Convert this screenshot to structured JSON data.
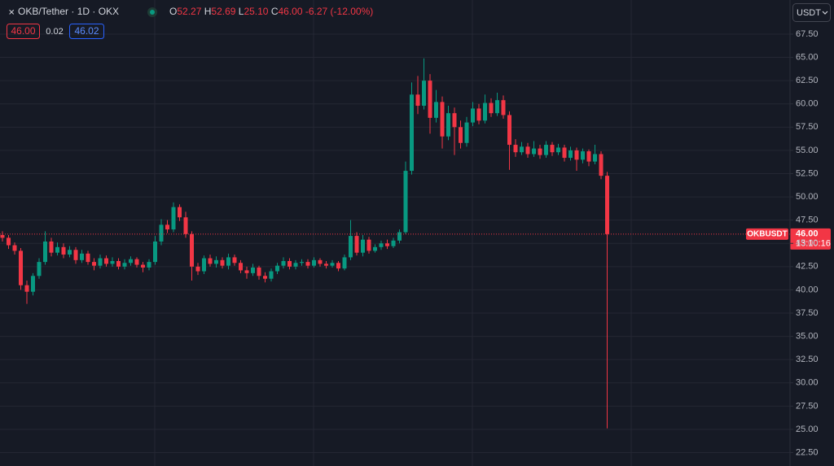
{
  "chart_data": {
    "type": "candlestick",
    "legend": {
      "symbol": "OKB/Tether · 1D · OKX",
      "o_label": "O",
      "open": "52.27",
      "h_label": "H",
      "high": "52.69",
      "l_label": "L",
      "low": "25.10",
      "c_label": "C",
      "close": "46.00",
      "change": "-6.27 (-12.00%)"
    },
    "order_boxes": {
      "sell": "46.00",
      "spread": "0.02",
      "buy": "46.02"
    },
    "currency_button": "USDT",
    "price_label": {
      "symbol": "OKBUSDT",
      "price": "46.00",
      "countdown": "13:10:16"
    },
    "up_color": "#089981",
    "down_color": "#f23645",
    "grid": true,
    "ylim": [
      21.06,
      71.17
    ],
    "yticks": [
      {
        "value": 22.5,
        "label": "22.50"
      },
      {
        "value": 25,
        "label": "25.00"
      },
      {
        "value": 27.5,
        "label": "27.50"
      },
      {
        "value": 30,
        "label": "30.00"
      },
      {
        "value": 32.5,
        "label": "32.50"
      },
      {
        "value": 35,
        "label": "35.00"
      },
      {
        "value": 37.5,
        "label": "37.50"
      },
      {
        "value": 40,
        "label": "40.00"
      },
      {
        "value": 42.5,
        "label": "42.50"
      },
      {
        "value": 45,
        "label": "45.00"
      },
      {
        "value": 47.5,
        "label": "47.50"
      },
      {
        "value": 50,
        "label": "50.00"
      },
      {
        "value": 52.5,
        "label": "52.50"
      },
      {
        "value": 55,
        "label": "55.00"
      },
      {
        "value": 57.5,
        "label": "57.50"
      },
      {
        "value": 60,
        "label": "60.00"
      },
      {
        "value": 62.5,
        "label": "62.50"
      },
      {
        "value": 65,
        "label": "65.00"
      },
      {
        "value": 67.5,
        "label": "67.50"
      }
    ],
    "open": [
      45.9,
      45.6,
      44.8,
      44.2,
      40.5,
      39.8,
      41.5,
      43.0,
      45.2,
      44.0,
      44.6,
      43.8,
      44.3,
      43.2,
      43.9,
      43.0,
      42.6,
      43.4,
      42.8,
      43.1,
      42.5,
      42.9,
      43.3,
      42.7,
      42.4,
      43.0,
      45.2,
      47.0,
      46.5,
      48.9,
      47.8,
      46.0,
      42.5,
      42.0,
      43.4,
      42.8,
      43.2,
      42.6,
      43.5,
      42.9,
      42.1,
      41.8,
      42.4,
      41.5,
      41.2,
      42.0,
      42.6,
      43.1,
      42.5,
      42.9,
      43.0,
      42.6,
      43.2,
      42.8,
      42.6,
      42.9,
      42.3,
      43.5,
      45.8,
      44.0,
      45.4,
      44.2,
      44.6,
      45.0,
      44.7,
      45.3,
      46.2,
      52.8,
      61.0,
      59.8,
      62.5,
      58.5,
      60.2,
      56.5,
      59.0,
      57.5,
      55.8,
      58.0,
      59.5,
      58.2,
      60.1,
      59.0,
      60.4,
      58.8,
      55.6,
      54.8,
      55.4,
      54.6,
      55.2,
      54.5,
      55.6,
      54.8,
      55.3,
      54.2,
      55.0,
      54.0,
      54.9,
      53.8,
      54.6,
      52.27
    ],
    "high": [
      46.3,
      45.9,
      45.1,
      44.5,
      41.0,
      41.8,
      43.4,
      46.3,
      45.6,
      45.1,
      45.0,
      44.7,
      44.6,
      44.3,
      44.2,
      43.4,
      43.8,
      43.7,
      43.5,
      43.4,
      43.3,
      43.6,
      43.5,
      43.0,
      43.3,
      45.8,
      47.6,
      47.5,
      49.4,
      49.2,
      48.4,
      46.3,
      42.9,
      43.7,
      43.8,
      43.6,
      43.5,
      43.9,
      43.8,
      43.2,
      42.5,
      42.8,
      42.6,
      41.9,
      42.3,
      42.9,
      43.5,
      43.4,
      43.2,
      43.3,
      43.3,
      43.5,
      43.4,
      43.1,
      43.2,
      43.1,
      43.8,
      47.5,
      46.2,
      45.9,
      45.7,
      44.9,
      45.3,
      45.4,
      45.6,
      46.5,
      53.8,
      62.3,
      63.0,
      64.9,
      63.2,
      61.5,
      60.8,
      59.8,
      59.6,
      58.2,
      58.6,
      60.2,
      60.0,
      61.0,
      60.6,
      61.2,
      60.9,
      59.2,
      56.2,
      55.9,
      55.8,
      56.0,
      55.6,
      56.0,
      55.9,
      55.7,
      55.6,
      55.4,
      55.3,
      55.2,
      55.1,
      55.6,
      54.9,
      52.69
    ],
    "low": [
      45.2,
      44.4,
      43.8,
      40.0,
      38.5,
      39.4,
      41.2,
      42.7,
      43.6,
      43.7,
      43.4,
      43.5,
      42.8,
      42.9,
      42.7,
      42.1,
      42.3,
      42.5,
      42.5,
      42.2,
      42.2,
      42.6,
      42.4,
      41.9,
      42.1,
      42.7,
      44.8,
      46.1,
      46.2,
      47.4,
      45.6,
      41.0,
      41.6,
      41.7,
      42.5,
      42.4,
      42.3,
      42.2,
      42.6,
      41.8,
      41.2,
      41.5,
      41.1,
      40.8,
      40.9,
      41.7,
      42.3,
      42.2,
      42.2,
      42.6,
      42.3,
      42.4,
      42.5,
      42.3,
      42.4,
      42.0,
      42.1,
      43.2,
      43.7,
      43.6,
      43.9,
      44.0,
      44.3,
      44.4,
      44.5,
      45.0,
      46.0,
      52.4,
      58.9,
      59.4,
      56.8,
      58.0,
      55.2,
      56.1,
      54.5,
      55.2,
      55.4,
      57.6,
      57.8,
      57.9,
      58.6,
      58.7,
      58.4,
      52.9,
      54.3,
      54.5,
      54.2,
      54.3,
      54.1,
      54.2,
      54.4,
      54.5,
      53.8,
      53.9,
      52.8,
      53.6,
      53.3,
      53.5,
      51.9,
      25.1
    ],
    "close": [
      45.6,
      44.8,
      44.2,
      40.5,
      39.8,
      41.5,
      43.0,
      45.2,
      44.0,
      44.6,
      43.8,
      44.3,
      43.2,
      43.9,
      43.0,
      42.6,
      43.4,
      42.8,
      43.1,
      42.5,
      42.9,
      43.3,
      42.7,
      42.4,
      43.0,
      45.2,
      47.0,
      46.5,
      48.9,
      47.8,
      46.0,
      42.5,
      42.0,
      43.4,
      42.8,
      43.2,
      42.6,
      43.5,
      42.9,
      42.1,
      41.8,
      42.4,
      41.5,
      41.2,
      42.0,
      42.6,
      43.1,
      42.5,
      42.9,
      43.0,
      42.6,
      43.2,
      42.8,
      42.6,
      42.9,
      42.3,
      43.5,
      45.8,
      44.0,
      45.4,
      44.2,
      44.6,
      45.0,
      44.7,
      45.3,
      46.2,
      52.8,
      61.0,
      59.8,
      62.5,
      58.5,
      60.2,
      56.5,
      59.0,
      57.5,
      55.8,
      58.0,
      59.5,
      58.2,
      60.1,
      59.0,
      60.4,
      58.8,
      55.6,
      54.8,
      55.4,
      54.6,
      55.2,
      54.5,
      55.6,
      54.8,
      55.3,
      54.2,
      55.0,
      54.0,
      54.9,
      53.8,
      54.6,
      52.27,
      46.0
    ]
  }
}
